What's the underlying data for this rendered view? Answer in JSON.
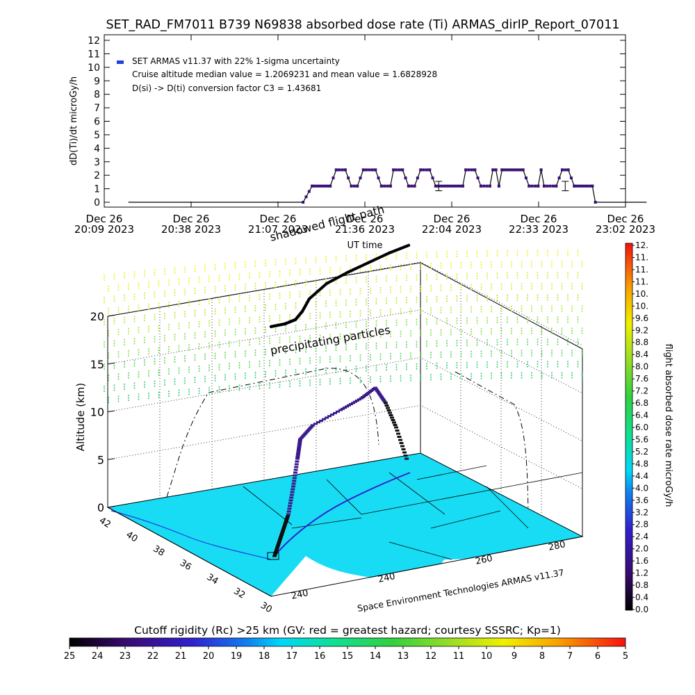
{
  "chart_data": [
    {
      "type": "scatter",
      "title": "SET_RAD_FM7011  B739 N69838 absorbed dose rate (Ti) ARMAS_dirIP_Report_07011",
      "xlabel": "UT time",
      "ylabel": "dD(Ti)/dt microGy/h",
      "ylim": [
        0,
        12
      ],
      "yticks": [
        "0",
        "1",
        "2",
        "3",
        "4",
        "5",
        "6",
        "7",
        "8",
        "9",
        "10",
        "11",
        "12"
      ],
      "xticks": [
        {
          "day": "Dec 26",
          "time": "20:09 2023"
        },
        {
          "day": "Dec 26",
          "time": "20:38 2023"
        },
        {
          "day": "Dec 26",
          "time": "21:07 2023"
        },
        {
          "day": "Dec 26",
          "time": "21:36 2023"
        },
        {
          "day": "Dec 26",
          "time": "22:04 2023"
        },
        {
          "day": "Dec 26",
          "time": "22:33 2023"
        },
        {
          "day": "Dec 26",
          "time": "23:02 2023"
        }
      ],
      "xlim_minutes": [
        0,
        173
      ],
      "legend": {
        "placement": "top-left",
        "entries": [
          "SET ARMAS v11.37 with 22% 1-sigma uncertainty",
          "Cruise altitude median value = 1.2069231 and mean value = 1.6828928",
          "D(si) -> D(ti) conversion factor C3 = 1.43681"
        ]
      },
      "series": [
        {
          "color": "#3a1078",
          "segments_x_minutes_y": [
            [
              8,
              0
            ],
            [
              66,
              0
            ],
            [
              69,
              1.2
            ],
            [
              75,
              1.2
            ],
            [
              77,
              2.4
            ],
            [
              80,
              2.4
            ],
            [
              82,
              1.2
            ],
            [
              84,
              1.2
            ],
            [
              86,
              2.4
            ],
            [
              90,
              2.4
            ],
            [
              92,
              1.2
            ],
            [
              95,
              1.2
            ],
            [
              96,
              2.4
            ],
            [
              99,
              2.4
            ],
            [
              101,
              1.2
            ],
            [
              103,
              1.2
            ],
            [
              105,
              2.4
            ],
            [
              108,
              2.4
            ],
            [
              110,
              1.2
            ],
            [
              119,
              1.2
            ],
            [
              120,
              2.4
            ],
            [
              123,
              2.4
            ],
            [
              125,
              1.2
            ],
            [
              128,
              1.2
            ],
            [
              129,
              2.4
            ],
            [
              130,
              2.4
            ],
            [
              131,
              1.2
            ],
            [
              132,
              2.4
            ],
            [
              139,
              2.4
            ],
            [
              141,
              1.2
            ],
            [
              144,
              1.2
            ],
            [
              145,
              2.4
            ],
            [
              146,
              1.2
            ],
            [
              150,
              1.2
            ],
            [
              152,
              2.4
            ],
            [
              154,
              2.4
            ],
            [
              156,
              1.2
            ],
            [
              162,
              1.2
            ],
            [
              163,
              0
            ],
            [
              180,
              0
            ]
          ],
          "error_bars": [
            {
              "x": 111,
              "y": 1.2,
              "err": 0.35
            },
            {
              "x": 153,
              "y": 1.2,
              "err": 0.35
            }
          ]
        }
      ]
    },
    {
      "type": "scatter",
      "title": "",
      "zlabel": "Altitude (km)",
      "zticks": [
        "0",
        "5",
        "10",
        "15",
        "20"
      ],
      "lat_ticks": [
        "30",
        "32",
        "34",
        "36",
        "38",
        "40",
        "42"
      ],
      "lon_ticks": [
        "240",
        "240",
        "260",
        "280"
      ],
      "annotations": [
        "shadowed flight path",
        "precipitating particles"
      ],
      "footer": "Space Environment Technologies ARMAS v11.37"
    },
    {
      "type": "heatmap",
      "colorbar": "flight absorbed dose rate microGy/h",
      "ticks": [
        "0.0",
        "0.4",
        "0.8",
        "1.2",
        "1.6",
        "2.0",
        "2.4",
        "2.8",
        "3.2",
        "3.6",
        "4.0",
        "4.4",
        "4.8",
        "5.2",
        "5.6",
        "6.0",
        "6.4",
        "6.8",
        "7.2",
        "7.6",
        "8.0",
        "8.4",
        "8.8",
        "9.2",
        "9.6",
        "10.",
        "10.",
        "11.",
        "11.",
        "11.",
        "12."
      ]
    },
    {
      "type": "heatmap",
      "colorbar": "Cutoff rigidity (Rc) >25 km (GV: red = greatest hazard; courtesy SSSRC; Kp=1)",
      "ticks": [
        "25",
        "24",
        "23",
        "22",
        "21",
        "20",
        "19",
        "18",
        "17",
        "16",
        "15",
        "14",
        "13",
        "12",
        "11",
        "10",
        "9",
        "8",
        "7",
        "6",
        "5"
      ]
    }
  ]
}
